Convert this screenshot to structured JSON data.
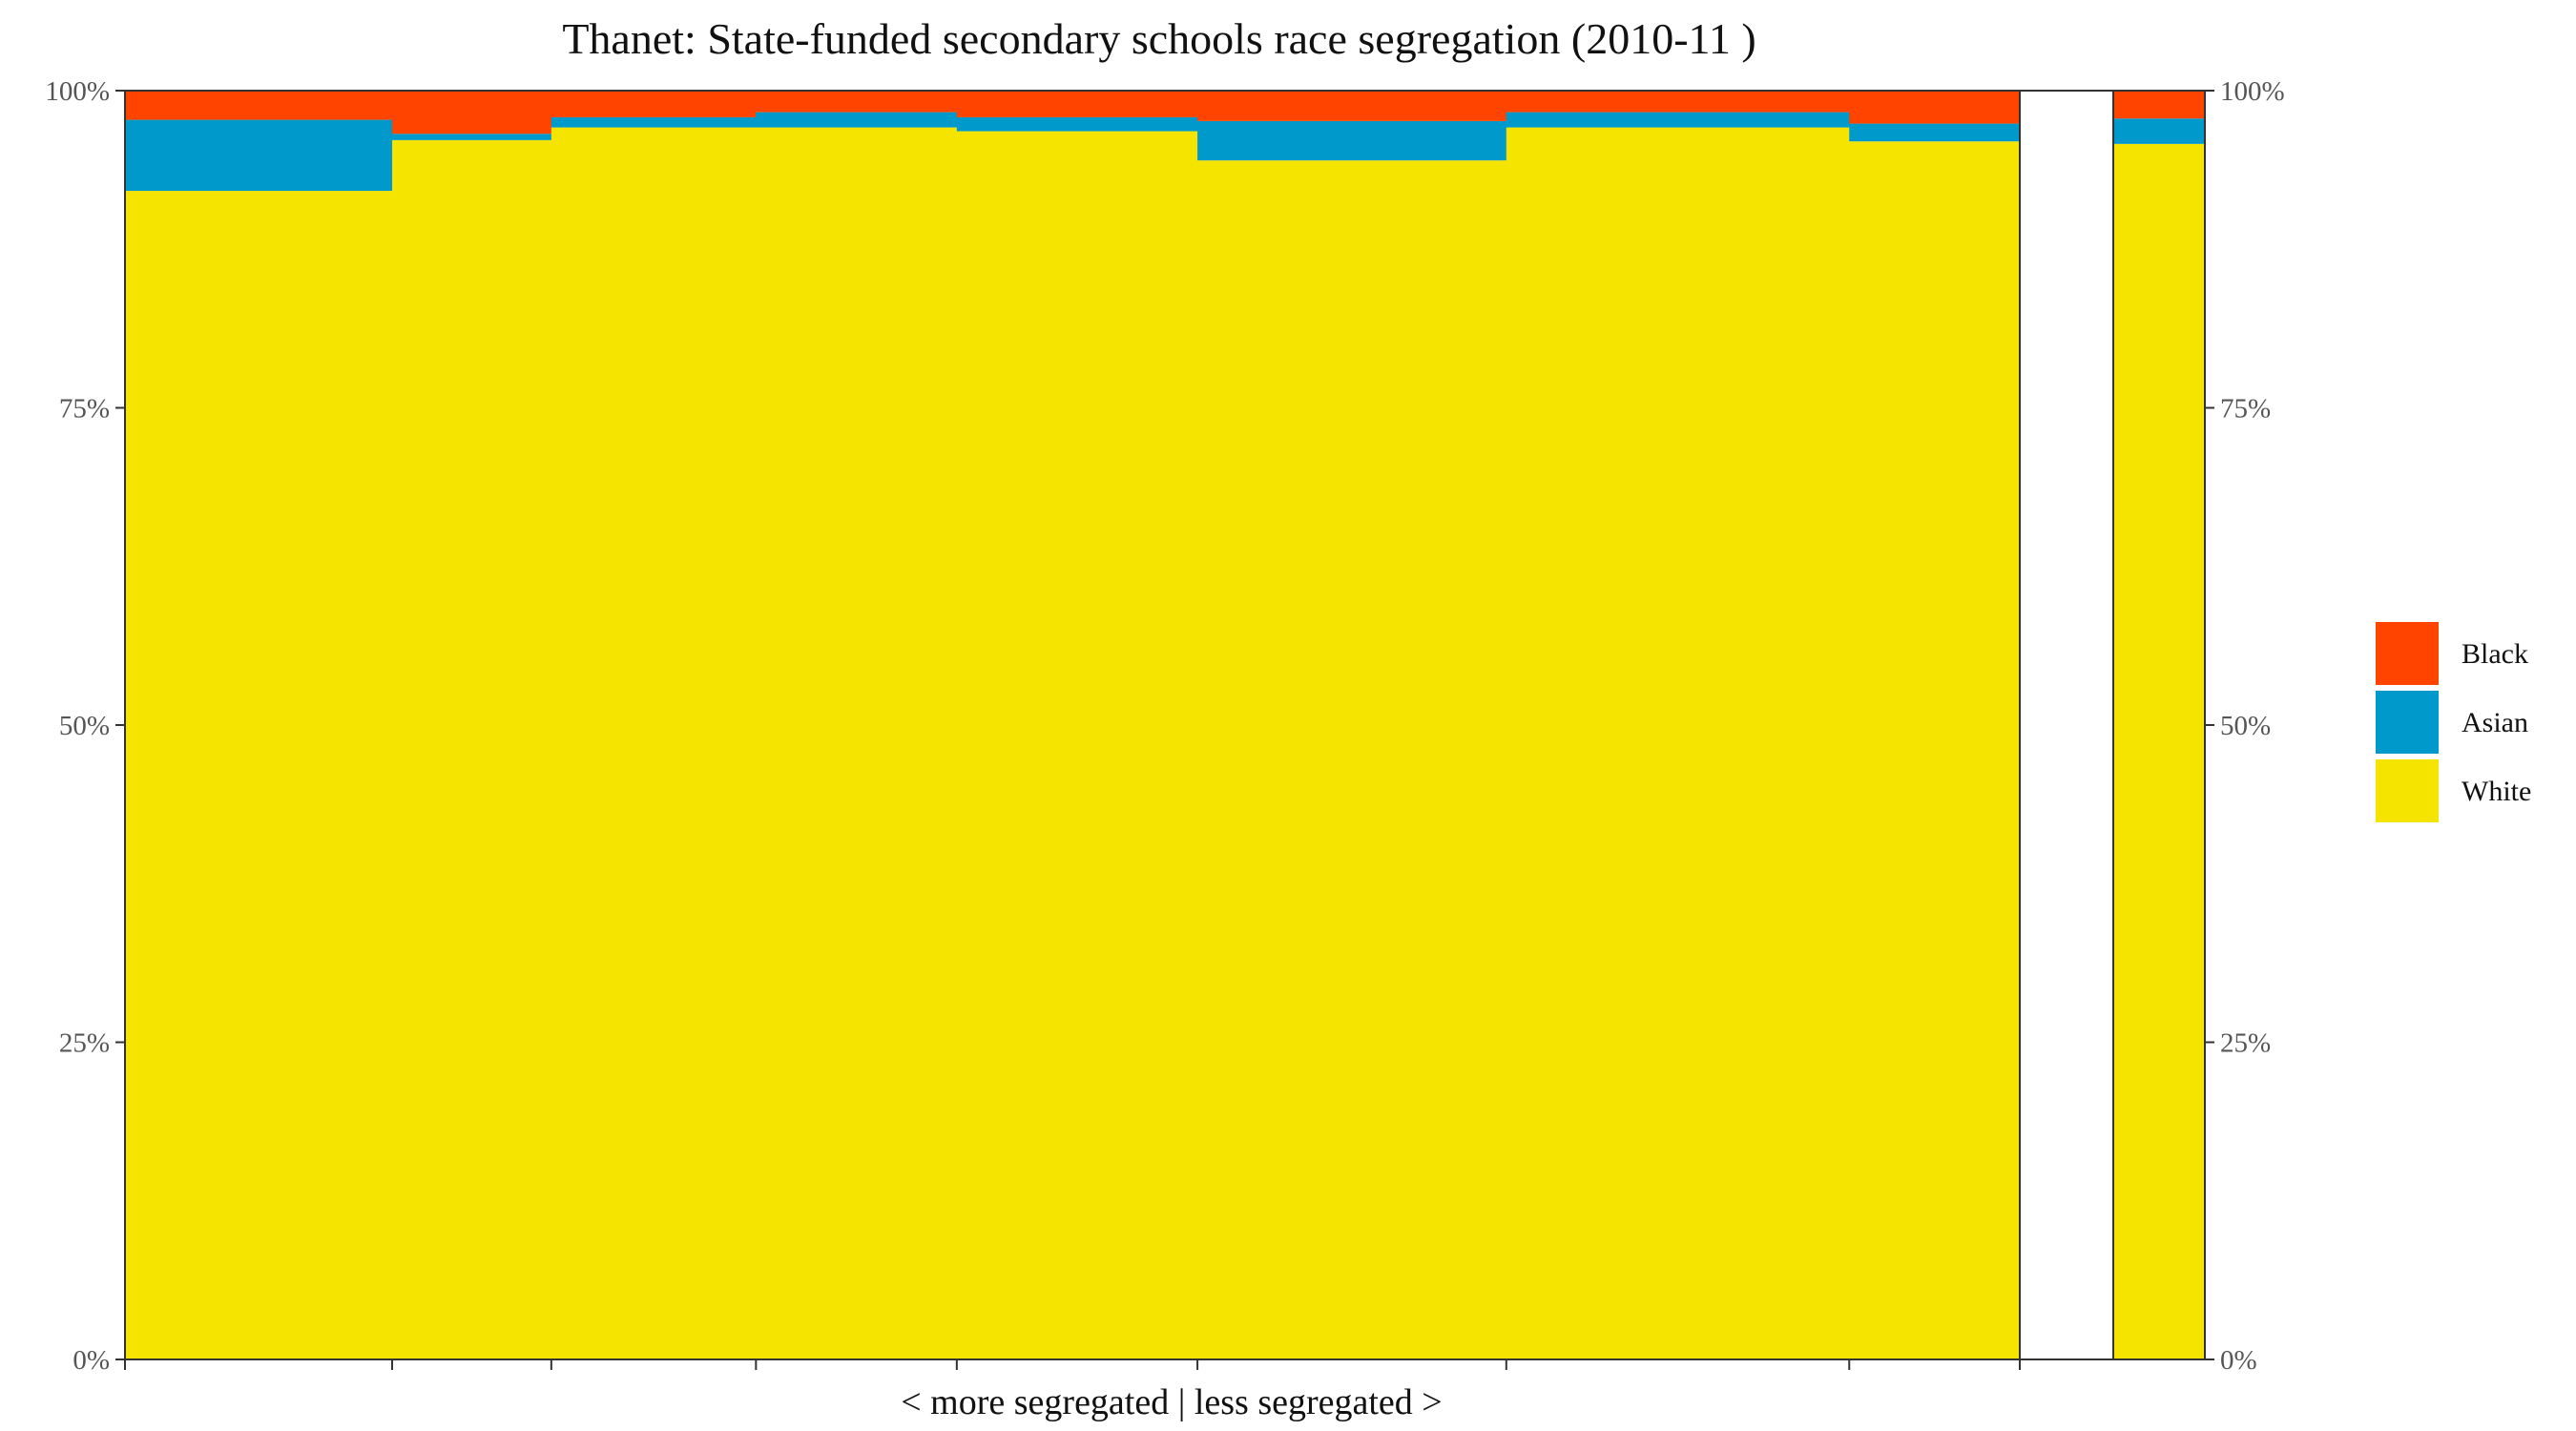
{
  "chart_data": {
    "type": "bar",
    "subtype": "stacked-variable-width",
    "title": "Thanet: State-funded secondary schools race segregation (2010-11 )",
    "xlabel": "< more segregated | less segregated >",
    "ylabel": "",
    "ylim": [
      0,
      100
    ],
    "y_ticks": [
      "0%",
      "25%",
      "50%",
      "75%",
      "100%"
    ],
    "stack_order": [
      "White",
      "Asian",
      "Black"
    ],
    "colors": {
      "White": "#f5e400",
      "Asian": "#0099cc",
      "Black": "#ff4400",
      "Other": "#ff4400"
    },
    "legend": {
      "placement": "right",
      "entries": [
        {
          "name": "Black",
          "color": "#ff4400"
        },
        {
          "name": "Asian",
          "color": "#0099cc"
        },
        {
          "name": "White",
          "color": "#f5e400"
        }
      ]
    },
    "schools": [
      {
        "share": 14.1,
        "White": 92.1,
        "Asian": 5.6,
        "Black": 2.3
      },
      {
        "share": 8.4,
        "White": 96.1,
        "Asian": 0.5,
        "Black": 3.4
      },
      {
        "share": 10.8,
        "White": 97.1,
        "Asian": 0.8,
        "Black": 2.1
      },
      {
        "share": 10.6,
        "White": 97.1,
        "Asian": 1.2,
        "Black": 1.7
      },
      {
        "share": 12.7,
        "White": 96.8,
        "Asian": 1.1,
        "Black": 2.1
      },
      {
        "share": 16.3,
        "White": 94.5,
        "Asian": 3.1,
        "Black": 2.4
      },
      {
        "share": 18.1,
        "White": 97.1,
        "Asian": 1.2,
        "Black": 1.7
      },
      {
        "share": 9.0,
        "White": 96.0,
        "Asian": 1.4,
        "Black": 2.6
      }
    ],
    "overall": {
      "White": 95.8,
      "Asian": 2.0,
      "Black": 2.2
    }
  }
}
